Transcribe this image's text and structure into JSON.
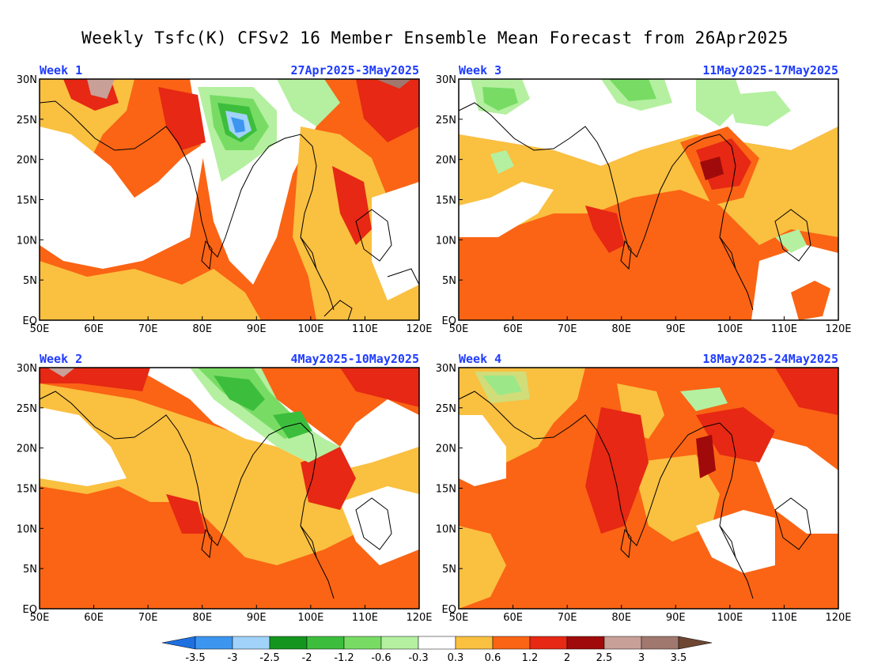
{
  "title": "Weekly Tsfc(K) CFSv2 16 Member Ensemble Mean Forecast from 26Apr2025",
  "axes": {
    "x_ticks": [
      "50E",
      "60E",
      "70E",
      "80E",
      "90E",
      "100E",
      "110E",
      "120E"
    ],
    "y_ticks": [
      "30N",
      "25N",
      "20N",
      "15N",
      "10N",
      "5N",
      "EQ"
    ]
  },
  "panels": [
    {
      "id": "week1",
      "week": "Week 1",
      "dates": "27Apr2025-3May2025"
    },
    {
      "id": "week3",
      "week": "Week 3",
      "dates": "11May2025-17May2025"
    },
    {
      "id": "week2",
      "week": "Week 2",
      "dates": "4May2025-10May2025"
    },
    {
      "id": "week4",
      "week": "Week 4",
      "dates": "18May2025-24May2025"
    }
  ],
  "colorbar": {
    "labels": [
      "-3.5",
      "-3",
      "-2.5",
      "-2",
      "-1.2",
      "-0.6",
      "-0.3",
      "0.3",
      "0.6",
      "1.2",
      "2",
      "2.5",
      "3",
      "3.5"
    ],
    "colors": [
      "#1e6fe0",
      "#3c96f0",
      "#a0d2fa",
      "#14961e",
      "#3cbe3c",
      "#78dc64",
      "#b4f0a0",
      "#ffffff",
      "#fac040",
      "#fa6414",
      "#e62814",
      "#a00a0a",
      "#c8a098",
      "#a0786e",
      "#6e4632"
    ]
  },
  "palette": {
    "white": "#ffffff",
    "light_orange": "#fac040",
    "orange": "#fa6414",
    "red": "#e62814",
    "dark_red": "#a00a0a",
    "pink_brown": "#c8a098",
    "brown": "#a0786e",
    "light_green": "#b4f0a0",
    "green": "#78dc64",
    "mid_green": "#3cbe3c",
    "light_blue": "#a0d2fa",
    "blue": "#3c96f0"
  }
}
